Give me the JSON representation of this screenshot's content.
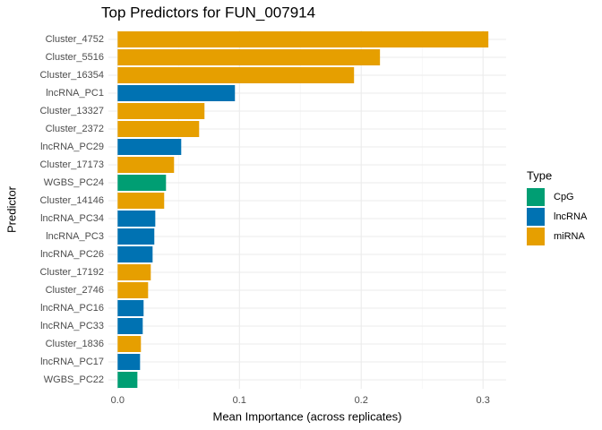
{
  "chart_data": {
    "type": "bar",
    "orientation": "horizontal",
    "title": "Top Predictors for FUN_007914",
    "x_label": "Mean Importance (across replicates)",
    "y_label": "Predictor",
    "categories": [
      "Cluster_4752",
      "Cluster_5516",
      "Cluster_16354",
      "lncRNA_PC1",
      "Cluster_13327",
      "Cluster_2372",
      "lncRNA_PC29",
      "Cluster_17173",
      "WGBS_PC24",
      "Cluster_14146",
      "lncRNA_PC34",
      "lncRNA_PC3",
      "lncRNA_PC26",
      "Cluster_17192",
      "Cluster_2746",
      "lncRNA_PC16",
      "lncRNA_PC33",
      "Cluster_1836",
      "lncRNA_PC17",
      "WGBS_PC22"
    ],
    "values": [
      0.3044,
      0.2154,
      0.1941,
      0.0963,
      0.0713,
      0.0669,
      0.0522,
      0.0463,
      0.0397,
      0.0382,
      0.0309,
      0.0301,
      0.0287,
      0.0272,
      0.025,
      0.0213,
      0.0206,
      0.0191,
      0.0184,
      0.0162
    ],
    "bar_types": [
      "miRNA",
      "miRNA",
      "miRNA",
      "lncRNA",
      "miRNA",
      "miRNA",
      "lncRNA",
      "miRNA",
      "CpG",
      "miRNA",
      "lncRNA",
      "lncRNA",
      "lncRNA",
      "miRNA",
      "miRNA",
      "lncRNA",
      "lncRNA",
      "miRNA",
      "lncRNA",
      "CpG"
    ],
    "legend": {
      "title": "Type",
      "items": [
        {
          "name": "CpG",
          "color": "#009E73"
        },
        {
          "name": "lncRNA",
          "color": "#0072B2"
        },
        {
          "name": "miRNA",
          "color": "#E69F00"
        }
      ]
    },
    "xlim": [
      -0.0076,
      0.319
    ],
    "xticks": [
      {
        "value": 0,
        "label": "0.0"
      },
      0.1,
      0.2,
      0.3
    ],
    "xminor": [
      0.05,
      0.15,
      0.25
    ],
    "grid": true
  }
}
